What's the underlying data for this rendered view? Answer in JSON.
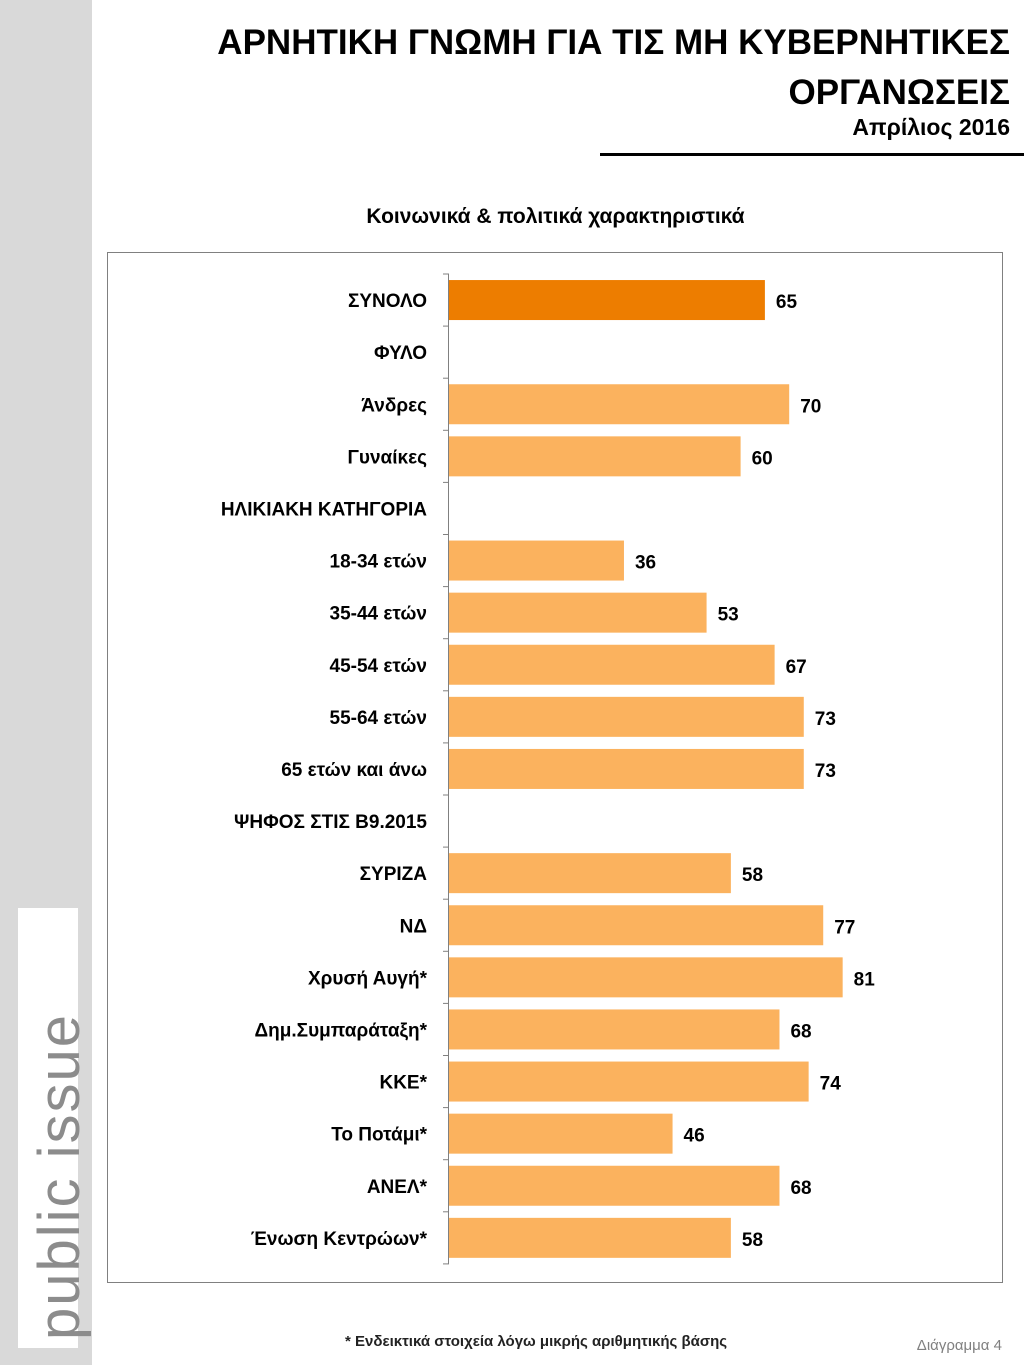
{
  "title": "ΑΡΝΗΤΙΚΗ ΓΝΩΜΗ ΓΙΑ ΤΙΣ ΜΗ ΚΥΒΕΡΝΗΤΙΚΕΣ ΟΡΓΑΝΩΣΕΙΣ",
  "date": "Απρίλιος 2016",
  "logo": "public issue",
  "footnote": "* Ενδεικτικά στοιχεία λόγω μικρής αριθμητικής βάσης",
  "diagram_label": "Διάγραμμα 4",
  "colors": {
    "highlight": "#ed7d00",
    "bar": "#fbb25e"
  },
  "chart_data": {
    "type": "bar",
    "orientation": "horizontal",
    "title": "Κοινωνικά & πολιτικά χαρακτηριστικά",
    "xlim": [
      0,
      100
    ],
    "categories": [
      "ΣΥΝΟΛΟ",
      "ΦΥΛΟ",
      "Άνδρες",
      "Γυναίκες",
      "ΗΛΙΚΙΑΚΗ ΚΑΤΗΓΟΡΙΑ",
      "18-34 ετών",
      "35-44 ετών",
      "45-54 ετών",
      "55-64 ετών",
      "65 ετών και άνω",
      "ΨΗΦΟΣ ΣΤΙΣ Β9.2015",
      "ΣΥΡΙΖΑ",
      "ΝΔ",
      "Χρυσή Αυγή*",
      "Δημ.Συμπαράταξη*",
      "ΚΚΕ*",
      "Το Ποτάμι*",
      "ΑΝΕΛ*",
      "Ένωση Κεντρώων*"
    ],
    "values": [
      65,
      null,
      70,
      60,
      null,
      36,
      53,
      67,
      73,
      73,
      null,
      58,
      77,
      81,
      68,
      74,
      46,
      68,
      58
    ],
    "highlight_index": 0
  }
}
